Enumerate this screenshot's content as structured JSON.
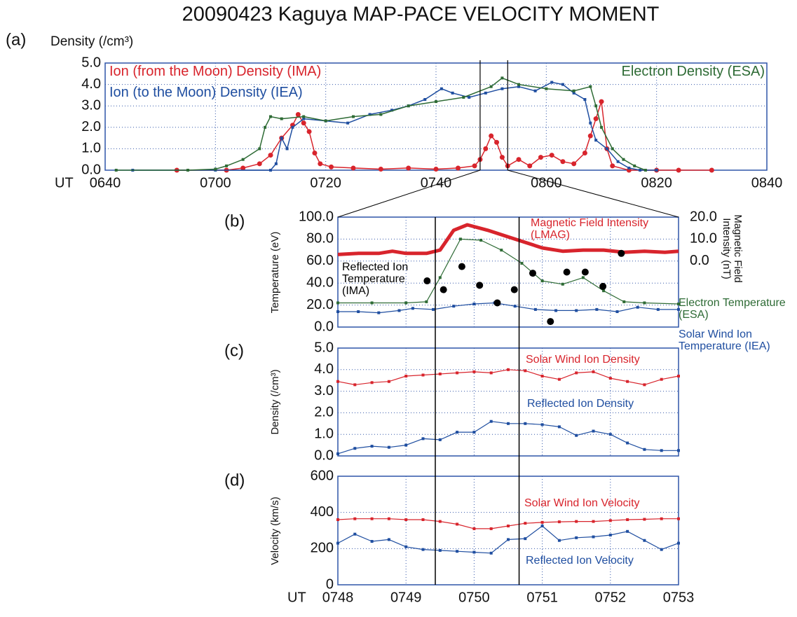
{
  "title": "20090423 Kaguya MAP-PACE VELOCITY MOMENT",
  "chart_data": [
    {
      "type": "line",
      "panel": "(a)",
      "ylabel": "Density (/cm³)",
      "xlabel": "UT",
      "xlim": [
        400,
        520
      ],
      "xticks": [
        {
          "value": 400,
          "label": "0640"
        },
        {
          "value": 420,
          "label": "0700"
        },
        {
          "value": 440,
          "label": "0720"
        },
        {
          "value": 460,
          "label": "0740"
        },
        {
          "value": 480,
          "label": "0800"
        },
        {
          "value": 500,
          "label": "0820"
        },
        {
          "value": 520,
          "label": "0840"
        }
      ],
      "ylim": [
        0,
        5
      ],
      "yticks": [
        {
          "value": 0,
          "label": "0.0"
        },
        {
          "value": 1,
          "label": "1.0"
        },
        {
          "value": 2,
          "label": "2.0"
        },
        {
          "value": 3,
          "label": "3.0"
        },
        {
          "value": 4,
          "label": "4.0"
        },
        {
          "value": 5,
          "label": "5.0"
        }
      ],
      "grid": true,
      "vlines": [
        468,
        473
      ],
      "series": [
        {
          "name": "Ion (from the Moon) Density (IMA)",
          "color": "#d8242c",
          "marker": "circle",
          "line": true,
          "x": [
            413,
            422,
            425,
            428,
            430,
            432,
            434,
            435,
            436,
            437,
            438,
            439,
            441,
            445,
            450,
            455,
            460,
            464,
            467,
            468,
            469,
            470,
            471,
            472,
            473,
            475,
            477,
            479,
            481,
            483,
            485,
            487,
            488,
            489,
            490,
            491,
            492,
            495,
            500,
            504,
            510
          ],
          "values": [
            0,
            0,
            0.1,
            0.3,
            0.7,
            1.5,
            2.1,
            2.6,
            2.2,
            1.8,
            0.8,
            0.3,
            0.15,
            0.1,
            0.05,
            0.1,
            0.05,
            0.1,
            0.2,
            0.5,
            1.0,
            1.6,
            1.3,
            0.6,
            0.2,
            0.5,
            0.2,
            0.6,
            0.7,
            0.4,
            0.3,
            0.8,
            1.6,
            2.4,
            3.2,
            1.0,
            0.2,
            0,
            0,
            0,
            0
          ]
        },
        {
          "name": "Ion (to the Moon) Density (IEA)",
          "color": "#1f4ea0",
          "marker": "square",
          "line": true,
          "x": [
            405,
            420,
            430,
            431,
            432,
            433,
            434,
            436,
            440,
            444,
            448,
            452,
            455,
            458,
            461,
            463,
            466,
            469,
            472,
            475,
            478,
            481,
            483,
            485,
            487,
            488,
            489,
            491,
            493,
            495,
            497,
            500
          ],
          "values": [
            0,
            0,
            0,
            0.3,
            1.5,
            1.0,
            2.0,
            2.4,
            2.3,
            2.2,
            2.6,
            2.8,
            3.0,
            3.3,
            3.8,
            3.6,
            3.4,
            3.6,
            3.8,
            3.9,
            3.7,
            4.1,
            4.0,
            3.6,
            3.3,
            2.2,
            1.4,
            1.0,
            0.4,
            0.1,
            0,
            0
          ]
        },
        {
          "name": "Electron Density (ESA)",
          "color": "#2e6b35",
          "marker": "square",
          "line": true,
          "x": [
            402,
            415,
            420,
            422,
            425,
            428,
            429,
            430,
            432,
            436,
            440,
            445,
            450,
            455,
            460,
            465,
            470,
            472,
            475,
            480,
            485,
            488,
            489,
            490,
            492,
            494,
            496,
            498
          ],
          "values": [
            0,
            0,
            0.05,
            0.2,
            0.5,
            1.0,
            2.0,
            2.5,
            2.4,
            2.5,
            2.3,
            2.5,
            2.6,
            3.0,
            3.2,
            3.4,
            3.9,
            4.3,
            4.0,
            3.8,
            3.7,
            3.9,
            3.0,
            2.0,
            1.0,
            0.5,
            0.2,
            0
          ]
        }
      ]
    },
    {
      "type": "line",
      "panel": "(b)",
      "ylabel": "Temperature (eV)",
      "y2label": "Magnetic Field Intensity (nT)",
      "xlim": [
        468,
        473
      ],
      "xticks": [
        468,
        469,
        470,
        471,
        472,
        473
      ],
      "xtick_labels": false,
      "ylim": [
        0,
        100
      ],
      "yticks": [
        {
          "value": 0,
          "label": "0.0"
        },
        {
          "value": 20,
          "label": "20.0"
        },
        {
          "value": 40,
          "label": "40.0"
        },
        {
          "value": 60,
          "label": "60.0"
        },
        {
          "value": 80,
          "label": "80.0"
        },
        {
          "value": 100,
          "label": "100.0"
        }
      ],
      "y2lim": [
        -30,
        20
      ],
      "y2ticks": [
        {
          "value": 0,
          "label": "0.0"
        },
        {
          "value": 10,
          "label": "10.0"
        },
        {
          "value": 20,
          "label": "20.0"
        }
      ],
      "grid": true,
      "vlines": [
        469.43,
        470.66
      ],
      "series": [
        {
          "name": "Magnetic Field Intensity (LMAG)",
          "color": "#d8242c",
          "axis": "y2",
          "marker": null,
          "line": true,
          "linewidth": 5,
          "x": [
            468,
            468.3,
            468.6,
            468.8,
            469,
            469.3,
            469.5,
            469.7,
            469.9,
            470.2,
            470.5,
            470.7,
            471,
            471.3,
            471.6,
            471.9,
            472.2,
            472.5,
            472.8,
            473
          ],
          "values": [
            3,
            3.5,
            3.5,
            4.5,
            3.5,
            3.5,
            5,
            14,
            16.5,
            14,
            11,
            9,
            6,
            4.5,
            5,
            5,
            4,
            4.5,
            4,
            4.5
          ]
        },
        {
          "name": "Electron Temperature (ESA)",
          "color": "#2e6b35",
          "marker": "square",
          "line": true,
          "x": [
            468,
            468.5,
            469,
            469.3,
            469.5,
            469.8,
            470.1,
            470.4,
            470.7,
            471,
            471.3,
            471.6,
            471.9,
            472.2,
            472.5,
            473
          ],
          "values": [
            22,
            22,
            22,
            23,
            45,
            80,
            79,
            70,
            58,
            42,
            39,
            45,
            33,
            23,
            22,
            21
          ]
        },
        {
          "name": "Solar Wind Ion Temperature (IEA)",
          "color": "#1f4ea0",
          "marker": "square",
          "line": true,
          "x": [
            468,
            468.3,
            468.6,
            468.9,
            469.1,
            469.4,
            469.7,
            470,
            470.3,
            470.6,
            470.9,
            471.2,
            471.5,
            471.8,
            472.1,
            472.4,
            472.7,
            473
          ],
          "values": [
            14,
            14,
            13,
            15,
            17,
            16,
            19,
            21,
            22,
            19,
            16,
            15,
            15,
            16,
            14,
            18,
            16,
            16
          ]
        },
        {
          "name": "Reflected Ion Temperature (IMA)",
          "color": "#000000",
          "marker": "dot",
          "line": false,
          "x": [
            469.31,
            469.55,
            469.82,
            470.08,
            470.34,
            470.59,
            470.86,
            471.12,
            471.36,
            471.63,
            471.89,
            472.16
          ],
          "values": [
            42,
            34,
            55,
            38,
            22,
            34,
            49,
            5,
            50,
            50,
            37,
            67
          ]
        }
      ]
    },
    {
      "type": "line",
      "panel": "(c)",
      "ylabel": "Density (/cm³)",
      "xlim": [
        468,
        473
      ],
      "xticks": [
        468,
        469,
        470,
        471,
        472,
        473
      ],
      "xtick_labels": false,
      "ylim": [
        0,
        5
      ],
      "yticks": [
        {
          "value": 0,
          "label": "0.0"
        },
        {
          "value": 1,
          "label": "1.0"
        },
        {
          "value": 2,
          "label": "2.0"
        },
        {
          "value": 3,
          "label": "3.0"
        },
        {
          "value": 4,
          "label": "4.0"
        },
        {
          "value": 5,
          "label": "5.0"
        }
      ],
      "grid": true,
      "series": [
        {
          "name": "Solar Wind Ion Density",
          "color": "#d8242c",
          "marker": "square",
          "line": true,
          "x": [
            468,
            468.25,
            468.5,
            468.75,
            469,
            469.25,
            469.5,
            469.75,
            470,
            470.25,
            470.5,
            470.75,
            471,
            471.25,
            471.5,
            471.75,
            472,
            472.25,
            472.5,
            472.75,
            473
          ],
          "values": [
            3.45,
            3.3,
            3.4,
            3.45,
            3.7,
            3.75,
            3.8,
            3.85,
            3.9,
            3.85,
            4.0,
            3.95,
            3.7,
            3.55,
            3.85,
            3.9,
            3.6,
            3.45,
            3.3,
            3.55,
            3.7
          ]
        },
        {
          "name": "Reflected Ion Density",
          "color": "#1f4ea0",
          "marker": "square",
          "line": true,
          "x": [
            468,
            468.25,
            468.5,
            468.75,
            469,
            469.25,
            469.5,
            469.75,
            470,
            470.25,
            470.5,
            470.75,
            471,
            471.25,
            471.5,
            471.75,
            472,
            472.25,
            472.5,
            472.75,
            473
          ],
          "values": [
            0.1,
            0.35,
            0.45,
            0.4,
            0.5,
            0.8,
            0.75,
            1.1,
            1.1,
            1.6,
            1.5,
            1.5,
            1.45,
            1.35,
            0.95,
            1.15,
            1.0,
            0.6,
            0.3,
            0.25,
            0.25
          ]
        }
      ]
    },
    {
      "type": "line",
      "panel": "(d)",
      "ylabel": "Velocity (km/s)",
      "xlabel": "UT",
      "xlim": [
        468,
        473
      ],
      "xticks": [
        {
          "value": 468,
          "label": "0748"
        },
        {
          "value": 469,
          "label": "0749"
        },
        {
          "value": 470,
          "label": "0750"
        },
        {
          "value": 471,
          "label": "0751"
        },
        {
          "value": 472,
          "label": "0752"
        },
        {
          "value": 473,
          "label": "0753"
        }
      ],
      "ylim": [
        0,
        600
      ],
      "yticks": [
        0,
        200,
        400,
        600
      ],
      "grid": true,
      "series": [
        {
          "name": "Solar Wind Ion Velocity",
          "color": "#d8242c",
          "marker": "square",
          "line": true,
          "x": [
            468,
            468.25,
            468.5,
            468.75,
            469,
            469.25,
            469.5,
            469.75,
            470,
            470.25,
            470.5,
            470.75,
            471,
            471.25,
            471.5,
            471.75,
            472,
            472.25,
            472.5,
            472.75,
            473
          ],
          "values": [
            360,
            365,
            365,
            365,
            360,
            360,
            350,
            335,
            310,
            310,
            325,
            340,
            345,
            348,
            350,
            350,
            355,
            360,
            362,
            365,
            365
          ]
        },
        {
          "name": "Reflected Ion Velocity",
          "color": "#1f4ea0",
          "marker": "square",
          "line": true,
          "x": [
            468,
            468.25,
            468.5,
            468.75,
            469,
            469.25,
            469.5,
            469.75,
            470,
            470.25,
            470.5,
            470.75,
            471,
            471.25,
            471.5,
            471.75,
            472,
            472.25,
            472.5,
            472.75,
            473
          ],
          "values": [
            230,
            280,
            240,
            250,
            210,
            195,
            190,
            185,
            180,
            175,
            250,
            255,
            325,
            245,
            260,
            265,
            275,
            295,
            245,
            195,
            230
          ]
        }
      ]
    }
  ]
}
